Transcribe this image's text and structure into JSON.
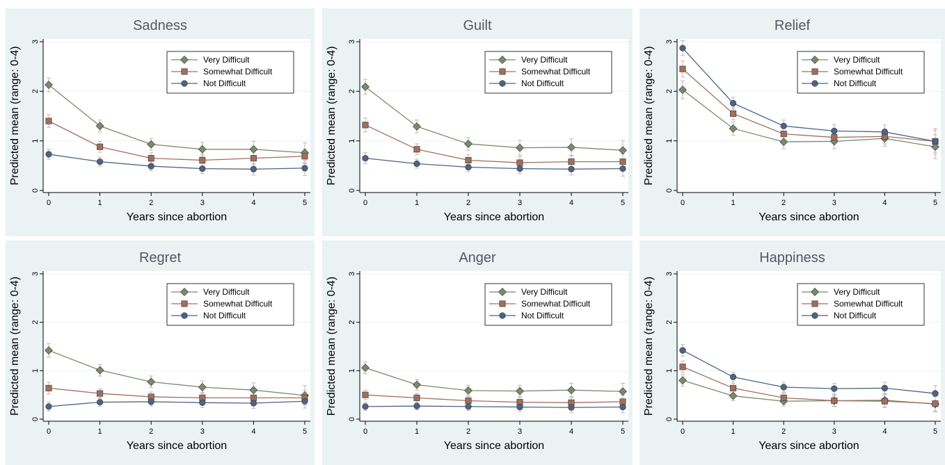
{
  "figure": {
    "colors": {
      "outer_bg": "#eaf2f3",
      "plot_bg": "#ffffff",
      "grid": "#eaf2f3",
      "title": "#505a64",
      "error_bar": "#c8b4b4"
    }
  },
  "chart_data": [
    {
      "type": "line",
      "title": "Sadness",
      "xlabel": "Years since abortion",
      "ylabel": "Predicted mean (range: 0-4)",
      "x": [
        0,
        1,
        2,
        3,
        4,
        5
      ],
      "xlim": [
        0,
        5
      ],
      "ylim": [
        0,
        3
      ],
      "yticks": [
        0,
        1,
        2,
        3
      ],
      "grid": true,
      "legend_position": "top-right",
      "series": [
        {
          "name": "Very Difficult",
          "color": "#7a8a6c",
          "marker": "diamond",
          "values": [
            2.13,
            1.3,
            0.93,
            0.83,
            0.83,
            0.76
          ],
          "error": [
            0.14,
            0.12,
            0.12,
            0.14,
            0.16,
            0.2
          ]
        },
        {
          "name": "Somewhat Difficult",
          "color": "#a36d5c",
          "marker": "square",
          "values": [
            1.4,
            0.88,
            0.65,
            0.61,
            0.65,
            0.69
          ],
          "error": [
            0.13,
            0.11,
            0.11,
            0.12,
            0.13,
            0.15
          ]
        },
        {
          "name": "Not Difficult",
          "color": "#4b6384",
          "marker": "circle",
          "values": [
            0.73,
            0.58,
            0.49,
            0.44,
            0.43,
            0.45
          ],
          "error": [
            0.1,
            0.09,
            0.09,
            0.1,
            0.12,
            0.15
          ]
        }
      ]
    },
    {
      "type": "line",
      "title": "Guilt",
      "xlabel": "Years since abortion",
      "ylabel": "Predicted mean (range: 0-4)",
      "x": [
        0,
        1,
        2,
        3,
        4,
        5
      ],
      "xlim": [
        0,
        5
      ],
      "ylim": [
        0,
        3
      ],
      "yticks": [
        0,
        1,
        2,
        3
      ],
      "grid": true,
      "legend_position": "top-right",
      "series": [
        {
          "name": "Very Difficult",
          "color": "#7a8a6c",
          "marker": "diamond",
          "values": [
            2.09,
            1.29,
            0.94,
            0.86,
            0.87,
            0.81
          ],
          "error": [
            0.15,
            0.13,
            0.13,
            0.15,
            0.17,
            0.2
          ]
        },
        {
          "name": "Somewhat Difficult",
          "color": "#a36d5c",
          "marker": "square",
          "values": [
            1.32,
            0.83,
            0.61,
            0.56,
            0.58,
            0.58
          ],
          "error": [
            0.14,
            0.11,
            0.11,
            0.12,
            0.13,
            0.15
          ]
        },
        {
          "name": "Not Difficult",
          "color": "#4b6384",
          "marker": "circle",
          "values": [
            0.65,
            0.54,
            0.47,
            0.44,
            0.43,
            0.44
          ],
          "error": [
            0.11,
            0.09,
            0.09,
            0.1,
            0.12,
            0.15
          ]
        }
      ]
    },
    {
      "type": "line",
      "title": "Relief",
      "xlabel": "Years since abortion",
      "ylabel": "Predicted mean (range: 0-4)",
      "x": [
        0,
        1,
        2,
        3,
        4,
        5
      ],
      "xlim": [
        0,
        5
      ],
      "ylim": [
        0,
        3
      ],
      "yticks": [
        0,
        1,
        2,
        3
      ],
      "grid": true,
      "legend_position": "top-right",
      "series": [
        {
          "name": "Very Difficult",
          "color": "#7a8a6c",
          "marker": "diamond",
          "values": [
            2.03,
            1.25,
            0.98,
            0.99,
            1.05,
            0.88
          ],
          "error": [
            0.18,
            0.14,
            0.14,
            0.15,
            0.16,
            0.24
          ]
        },
        {
          "name": "Somewhat Difficult",
          "color": "#a36d5c",
          "marker": "square",
          "values": [
            2.45,
            1.55,
            1.14,
            1.07,
            1.09,
            0.99
          ],
          "error": [
            0.16,
            0.12,
            0.12,
            0.13,
            0.15,
            0.26
          ]
        },
        {
          "name": "Not Difficult",
          "color": "#4b6384",
          "marker": "circle",
          "values": [
            2.87,
            1.76,
            1.3,
            1.2,
            1.18,
            0.99
          ],
          "error": [
            0.15,
            0.12,
            0.12,
            0.13,
            0.14,
            0.22
          ]
        }
      ]
    },
    {
      "type": "line",
      "title": "Regret",
      "xlabel": "Years since abortion",
      "ylabel": "Predicted mean (range: 0-4)",
      "x": [
        0,
        1,
        2,
        3,
        4,
        5
      ],
      "xlim": [
        0,
        5
      ],
      "ylim": [
        0,
        3
      ],
      "yticks": [
        0,
        1,
        2,
        3
      ],
      "grid": true,
      "legend_position": "top-right",
      "series": [
        {
          "name": "Very Difficult",
          "color": "#7a8a6c",
          "marker": "diamond",
          "values": [
            1.42,
            1.01,
            0.77,
            0.66,
            0.6,
            0.49
          ],
          "error": [
            0.14,
            0.12,
            0.12,
            0.13,
            0.15,
            0.2
          ]
        },
        {
          "name": "Somewhat Difficult",
          "color": "#a36d5c",
          "marker": "square",
          "values": [
            0.64,
            0.53,
            0.46,
            0.44,
            0.44,
            0.44
          ],
          "error": [
            0.12,
            0.1,
            0.1,
            0.11,
            0.12,
            0.15
          ]
        },
        {
          "name": "Not Difficult",
          "color": "#4b6384",
          "marker": "circle",
          "values": [
            0.26,
            0.35,
            0.36,
            0.34,
            0.33,
            0.37
          ],
          "error": [
            0.09,
            0.09,
            0.09,
            0.1,
            0.11,
            0.14
          ]
        }
      ]
    },
    {
      "type": "line",
      "title": "Anger",
      "xlabel": "Years since abortion",
      "ylabel": "Predicted mean (range: 0-4)",
      "x": [
        0,
        1,
        2,
        3,
        4,
        5
      ],
      "xlim": [
        0,
        5
      ],
      "ylim": [
        0,
        3
      ],
      "yticks": [
        0,
        1,
        2,
        3
      ],
      "grid": true,
      "legend_position": "top-right",
      "series": [
        {
          "name": "Very Difficult",
          "color": "#7a8a6c",
          "marker": "diamond",
          "values": [
            1.06,
            0.71,
            0.59,
            0.58,
            0.6,
            0.57
          ],
          "error": [
            0.12,
            0.11,
            0.11,
            0.12,
            0.14,
            0.17
          ]
        },
        {
          "name": "Somewhat Difficult",
          "color": "#a36d5c",
          "marker": "square",
          "values": [
            0.5,
            0.44,
            0.38,
            0.35,
            0.34,
            0.36
          ],
          "error": [
            0.1,
            0.09,
            0.09,
            0.1,
            0.11,
            0.13
          ]
        },
        {
          "name": "Not Difficult",
          "color": "#4b6384",
          "marker": "circle",
          "values": [
            0.26,
            0.27,
            0.26,
            0.25,
            0.24,
            0.25
          ],
          "error": [
            0.08,
            0.08,
            0.08,
            0.09,
            0.1,
            0.12
          ]
        }
      ]
    },
    {
      "type": "line",
      "title": "Happiness",
      "xlabel": "Years since abortion",
      "ylabel": "Predicted mean (range: 0-4)",
      "x": [
        0,
        1,
        2,
        3,
        4,
        5
      ],
      "xlim": [
        0,
        5
      ],
      "ylim": [
        0,
        3
      ],
      "yticks": [
        0,
        1,
        2,
        3
      ],
      "grid": true,
      "legend_position": "top-right",
      "series": [
        {
          "name": "Very Difficult",
          "color": "#7a8a6c",
          "marker": "diamond",
          "values": [
            0.8,
            0.48,
            0.37,
            0.38,
            0.39,
            0.31
          ],
          "error": [
            0.12,
            0.1,
            0.1,
            0.12,
            0.14,
            0.16
          ]
        },
        {
          "name": "Somewhat Difficult",
          "color": "#a36d5c",
          "marker": "square",
          "values": [
            1.08,
            0.64,
            0.44,
            0.38,
            0.37,
            0.32
          ],
          "error": [
            0.12,
            0.1,
            0.1,
            0.11,
            0.13,
            0.15
          ]
        },
        {
          "name": "Not Difficult",
          "color": "#4b6384",
          "marker": "circle",
          "values": [
            1.42,
            0.87,
            0.66,
            0.63,
            0.64,
            0.53
          ],
          "error": [
            0.12,
            0.1,
            0.1,
            0.11,
            0.12,
            0.16
          ]
        }
      ]
    }
  ]
}
